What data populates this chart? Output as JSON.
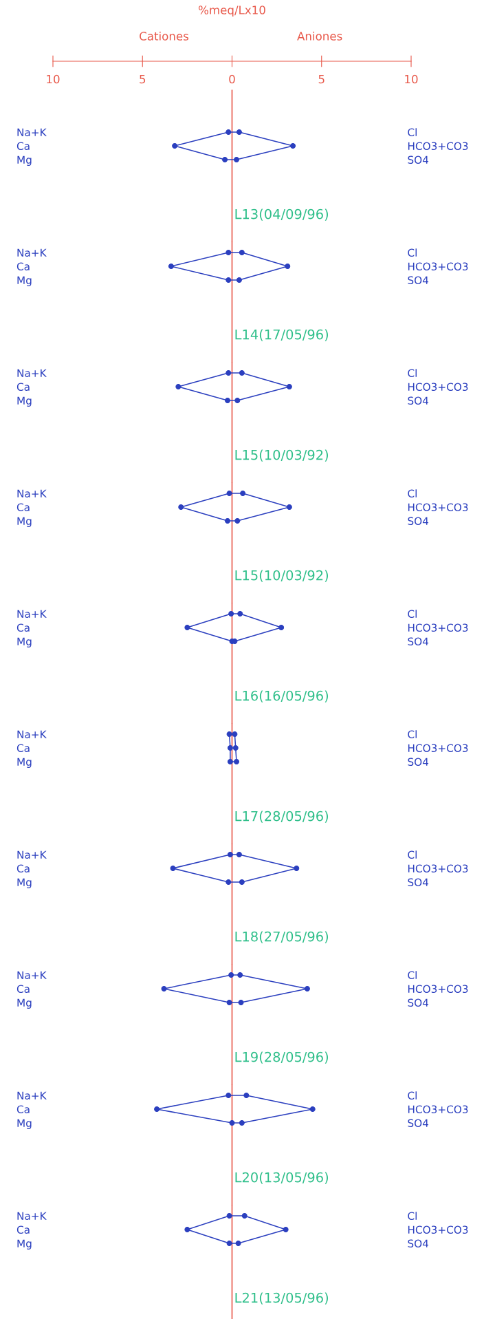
{
  "chart_data": [
    {
      "type": "line",
      "orientation": "horizontal",
      "title": "L13(04/09/96)",
      "xlabel": "%meq/Lx10",
      "annotations": [
        "Cationes",
        "Aniones"
      ],
      "xlim": [
        -10,
        10
      ],
      "xticks": [
        {
          "value": -10,
          "label": "10"
        },
        {
          "value": -5,
          "label": "5"
        },
        0,
        5,
        10
      ],
      "categories": [
        "Na+K",
        "Ca",
        "Mg"
      ],
      "y2_categories": [
        "Cl",
        "HCO3+CO3",
        "SO4"
      ],
      "marker": "circle",
      "line_style": "solid",
      "ref_lines": [
        {
          "axis": "x",
          "value": 0,
          "color": "#e8584a"
        }
      ],
      "series": [
        {
          "color": "#2b3fbf",
          "values": [
            -0.2,
            -3.2,
            -0.4
          ]
        },
        {
          "color": "#2b3fbf",
          "values": [
            0.4,
            3.4,
            0.25
          ]
        }
      ]
    },
    {
      "type": "line",
      "orientation": "horizontal",
      "title": "L14(17/05/96)",
      "xlim": [
        -10,
        10
      ],
      "tick_labels": "y",
      "categories": [
        "Na+K",
        "Ca",
        "Mg"
      ],
      "y2_categories": [
        "Cl",
        "HCO3+CO3",
        "SO4"
      ],
      "marker": "circle",
      "line_style": "solid",
      "ref_lines": [
        {
          "axis": "x",
          "value": 0,
          "color": "#e8584a"
        }
      ],
      "series": [
        {
          "color": "#2b3fbf",
          "values": [
            -0.2,
            -3.4,
            -0.2
          ]
        },
        {
          "color": "#2b3fbf",
          "values": [
            0.55,
            3.1,
            0.4
          ]
        }
      ]
    },
    {
      "type": "line",
      "orientation": "horizontal",
      "title": "L15(10/03/92)",
      "xlim": [
        -10,
        10
      ],
      "tick_labels": "y",
      "categories": [
        "Na+K",
        "Ca",
        "Mg"
      ],
      "y2_categories": [
        "Cl",
        "HCO3+CO3",
        "SO4"
      ],
      "marker": "circle",
      "line_style": "solid",
      "ref_lines": [
        {
          "axis": "x",
          "value": 0,
          "color": "#e8584a"
        }
      ],
      "series": [
        {
          "color": "#2b3fbf",
          "values": [
            -0.2,
            -3.0,
            -0.25
          ]
        },
        {
          "color": "#2b3fbf",
          "values": [
            0.55,
            3.2,
            0.3
          ]
        }
      ]
    },
    {
      "type": "line",
      "orientation": "horizontal",
      "title": "L15(10/03/92)",
      "xlim": [
        -10,
        10
      ],
      "tick_labels": "y",
      "categories": [
        "Na+K",
        "Ca",
        "Mg"
      ],
      "y2_categories": [
        "Cl",
        "HCO3+CO3",
        "SO4"
      ],
      "marker": "circle",
      "line_style": "solid",
      "ref_lines": [
        {
          "axis": "x",
          "value": 0,
          "color": "#e8584a"
        }
      ],
      "series": [
        {
          "color": "#2b3fbf",
          "values": [
            -0.15,
            -2.85,
            -0.25
          ]
        },
        {
          "color": "#2b3fbf",
          "values": [
            0.6,
            3.2,
            0.3
          ]
        }
      ]
    },
    {
      "type": "line",
      "orientation": "horizontal",
      "title": "L16(16/05/96)",
      "xlim": [
        -10,
        10
      ],
      "tick_labels": "y",
      "categories": [
        "Na+K",
        "Ca",
        "Mg"
      ],
      "y2_categories": [
        "Cl",
        "HCO3+CO3",
        "SO4"
      ],
      "marker": "circle",
      "line_style": "solid",
      "ref_lines": [
        {
          "axis": "x",
          "value": 0,
          "color": "#e8584a"
        }
      ],
      "series": [
        {
          "color": "#2b3fbf",
          "values": [
            -0.05,
            -2.5,
            0
          ]
        },
        {
          "color": "#2b3fbf",
          "values": [
            0.45,
            2.75,
            0.15
          ]
        }
      ]
    },
    {
      "type": "line",
      "orientation": "horizontal",
      "title": "L17(28/05/96)",
      "xlim": [
        -10,
        10
      ],
      "tick_labels": "y",
      "categories": [
        "Na+K",
        "Ca",
        "Mg"
      ],
      "y2_categories": [
        "Cl",
        "HCO3+CO3",
        "SO4"
      ],
      "marker": "circle",
      "line_style": "solid",
      "ref_lines": [
        {
          "axis": "x",
          "value": 0,
          "color": "#e8584a"
        }
      ],
      "series": [
        {
          "color": "#2b3fbf",
          "values": [
            -0.15,
            -0.1,
            -0.1
          ]
        },
        {
          "color": "#2b3fbf",
          "values": [
            0.15,
            0.2,
            0.25
          ]
        }
      ]
    },
    {
      "type": "line",
      "orientation": "horizontal",
      "title": "L18(27/05/96)",
      "xlim": [
        -10,
        10
      ],
      "tick_labels": "y",
      "categories": [
        "Na+K",
        "Ca",
        "Mg"
      ],
      "y2_categories": [
        "Cl",
        "HCO3+CO3",
        "SO4"
      ],
      "marker": "circle",
      "line_style": "solid",
      "ref_lines": [
        {
          "axis": "x",
          "value": 0,
          "color": "#e8584a"
        }
      ],
      "series": [
        {
          "color": "#2b3fbf",
          "values": [
            -0.1,
            -3.3,
            -0.2
          ]
        },
        {
          "color": "#2b3fbf",
          "values": [
            0.4,
            3.6,
            0.55
          ]
        }
      ]
    },
    {
      "type": "line",
      "orientation": "horizontal",
      "title": "L19(28/05/96)",
      "xlim": [
        -10,
        10
      ],
      "tick_labels": "y",
      "categories": [
        "Na+K",
        "Ca",
        "Mg"
      ],
      "y2_categories": [
        "Cl",
        "HCO3+CO3",
        "SO4"
      ],
      "marker": "circle",
      "line_style": "solid",
      "ref_lines": [
        {
          "axis": "x",
          "value": 0,
          "color": "#e8584a"
        }
      ],
      "series": [
        {
          "color": "#2b3fbf",
          "values": [
            -0.05,
            -3.8,
            -0.15
          ]
        },
        {
          "color": "#2b3fbf",
          "values": [
            0.45,
            4.2,
            0.5
          ]
        }
      ]
    },
    {
      "type": "line",
      "orientation": "horizontal",
      "title": "L20(13/05/96)",
      "xlim": [
        -10,
        10
      ],
      "tick_labels": "y",
      "categories": [
        "Na+K",
        "Ca",
        "Mg"
      ],
      "y2_categories": [
        "Cl",
        "HCO3+CO3",
        "SO4"
      ],
      "marker": "circle",
      "line_style": "solid",
      "ref_lines": [
        {
          "axis": "x",
          "value": 0,
          "color": "#e8584a"
        }
      ],
      "series": [
        {
          "color": "#2b3fbf",
          "values": [
            -0.2,
            -4.2,
            0
          ]
        },
        {
          "color": "#2b3fbf",
          "values": [
            0.8,
            4.5,
            0.55
          ]
        }
      ]
    },
    {
      "type": "line",
      "orientation": "horizontal",
      "title": "L21(13/05/96)",
      "xlim": [
        -10,
        10
      ],
      "tick_labels": "y",
      "categories": [
        "Na+K",
        "Ca",
        "Mg"
      ],
      "y2_categories": [
        "Cl",
        "HCO3+CO3",
        "SO4"
      ],
      "marker": "circle",
      "line_style": "solid",
      "ref_lines": [
        {
          "axis": "x",
          "value": 0,
          "color": "#e8584a"
        }
      ],
      "series": [
        {
          "color": "#2b3fbf",
          "values": [
            -0.15,
            -2.5,
            -0.15
          ]
        },
        {
          "color": "#2b3fbf",
          "values": [
            0.7,
            3.0,
            0.35
          ]
        }
      ]
    }
  ]
}
